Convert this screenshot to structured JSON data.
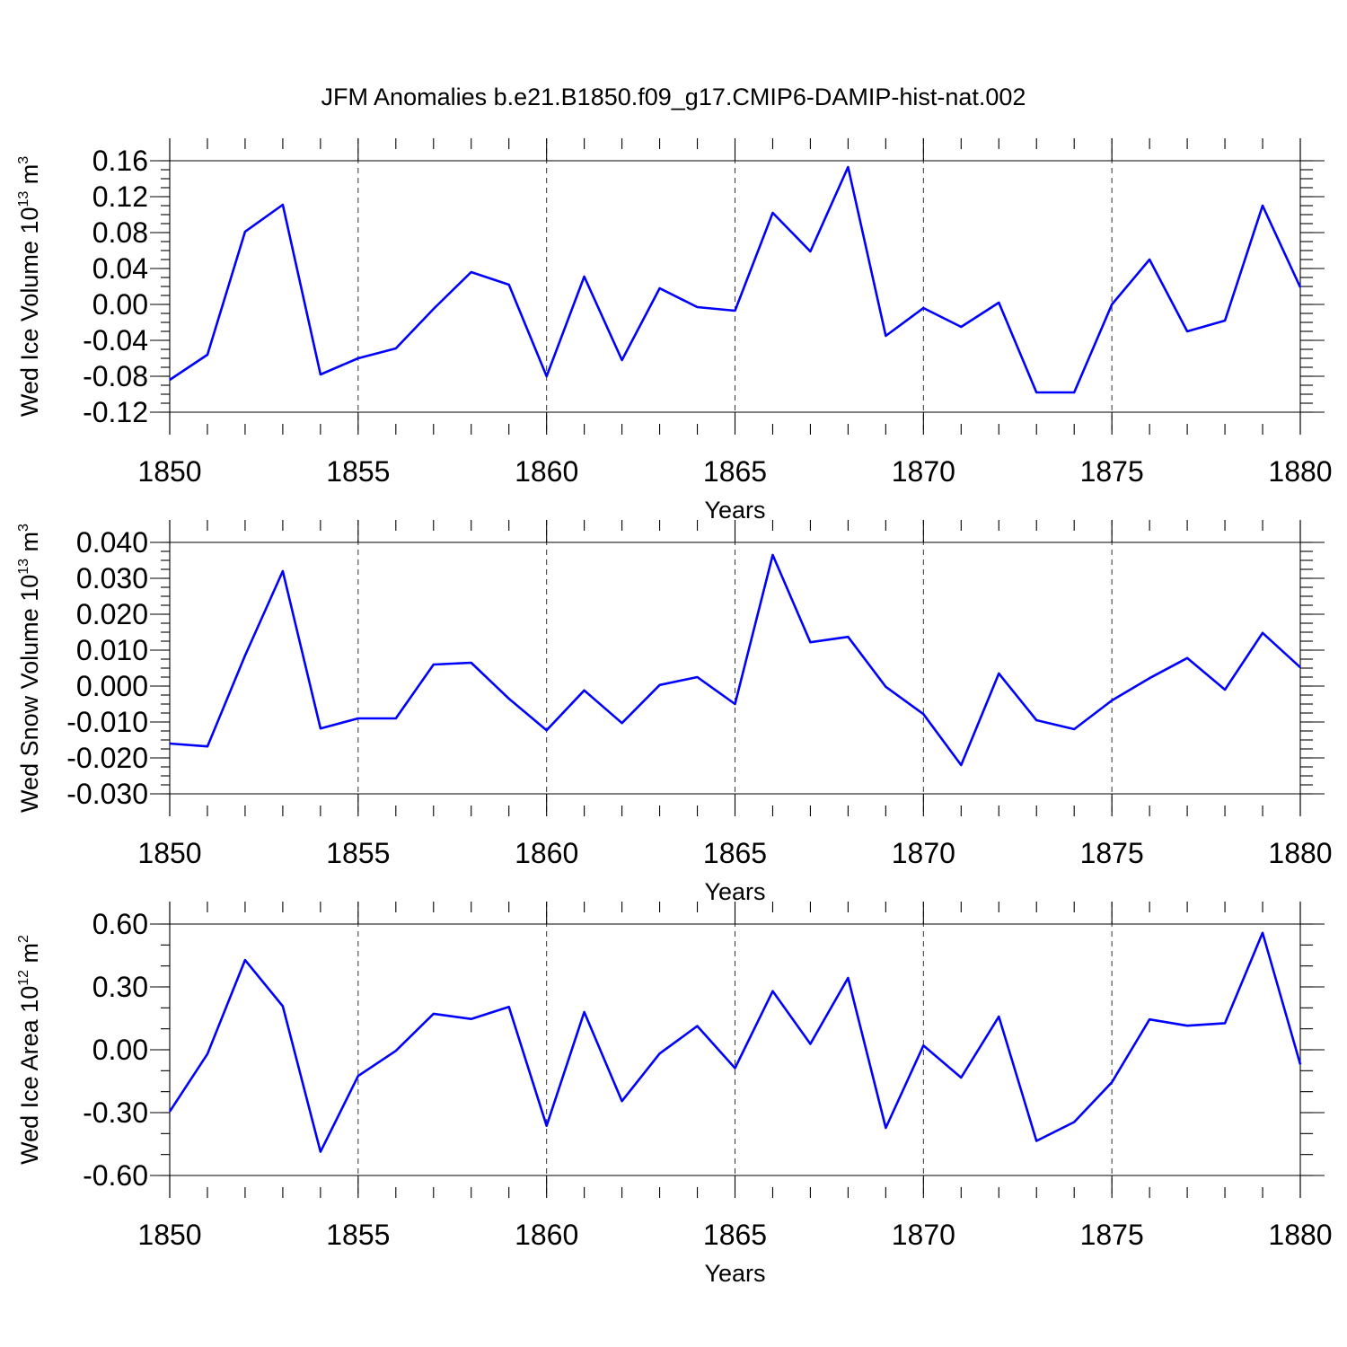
{
  "title": "JFM Anomalies b.e21.B1850.f09_g17.CMIP6-DAMIP-hist-nat.002",
  "colors": {
    "line": "#0000ff",
    "axis": "#000000",
    "grid": "#333333"
  },
  "chart_data": [
    {
      "type": "line",
      "xlabel": "Years",
      "ylabel": {
        "text": "Wed Ice Volume 10",
        "exp": "13",
        "unit": " m",
        "unit_exp": "3"
      },
      "xlim": [
        1850,
        1880
      ],
      "ylim": [
        -0.12,
        0.16
      ],
      "xticks": [
        "1850",
        "1855",
        "1860",
        "1865",
        "1870",
        "1875",
        "1880"
      ],
      "yticks": [
        "0.16",
        "0.12",
        "0.08",
        "0.04",
        "0.00",
        "-0.04",
        "-0.08",
        "-0.12"
      ],
      "grid": "vertical dashed at labeled years",
      "x": [
        1850,
        1851,
        1852,
        1853,
        1854,
        1855,
        1856,
        1857,
        1858,
        1859,
        1860,
        1861,
        1862,
        1863,
        1864,
        1865,
        1866,
        1867,
        1868,
        1869,
        1870,
        1871,
        1872,
        1873,
        1874,
        1875,
        1876,
        1877,
        1878,
        1879,
        1880
      ],
      "series": [
        {
          "values": [
            -0.084,
            -0.056,
            0.081,
            0.111,
            -0.078,
            -0.06,
            -0.049,
            -0.005,
            0.036,
            0.022,
            -0.08,
            0.031,
            -0.062,
            0.018,
            -0.003,
            -0.007,
            0.102,
            0.059,
            0.153,
            -0.035,
            -0.004,
            -0.025,
            0.002,
            -0.098,
            -0.098,
            0.0,
            0.05,
            -0.03,
            -0.018,
            0.11,
            0.019
          ]
        }
      ]
    },
    {
      "type": "line",
      "xlabel": "Years",
      "ylabel": {
        "text": "Wed Snow Volume 10",
        "exp": "13",
        "unit": " m",
        "unit_exp": "3"
      },
      "xlim": [
        1850,
        1880
      ],
      "ylim": [
        -0.03,
        0.04
      ],
      "xticks": [
        "1850",
        "1855",
        "1860",
        "1865",
        "1870",
        "1875",
        "1880"
      ],
      "yticks": [
        "0.040",
        "0.030",
        "0.020",
        "0.010",
        "0.000",
        "-0.010",
        "-0.020",
        "-0.030"
      ],
      "grid": "vertical dashed at labeled years",
      "x": [
        1850,
        1851,
        1852,
        1853,
        1854,
        1855,
        1856,
        1857,
        1858,
        1859,
        1860,
        1861,
        1862,
        1863,
        1864,
        1865,
        1866,
        1867,
        1868,
        1869,
        1870,
        1871,
        1872,
        1873,
        1874,
        1875,
        1876,
        1877,
        1878,
        1879,
        1880
      ],
      "series": [
        {
          "values": [
            -0.016,
            -0.0168,
            0.0085,
            0.032,
            -0.0118,
            -0.009,
            -0.009,
            0.006,
            0.0065,
            -0.0035,
            -0.0123,
            -0.0012,
            -0.0103,
            0.0003,
            0.0025,
            -0.005,
            0.0365,
            0.0122,
            0.0137,
            -0.0002,
            -0.0078,
            -0.022,
            0.0035,
            -0.0095,
            -0.012,
            -0.004,
            0.0022,
            0.0078,
            -0.001,
            0.0148,
            0.0052
          ]
        }
      ]
    },
    {
      "type": "line",
      "xlabel": "Years",
      "ylabel": {
        "text": "Wed Ice Area 10",
        "exp": "12",
        "unit": " m",
        "unit_exp": "2"
      },
      "xlim": [
        1850,
        1880
      ],
      "ylim": [
        -0.6,
        0.6
      ],
      "xticks": [
        "1850",
        "1855",
        "1860",
        "1865",
        "1870",
        "1875",
        "1880"
      ],
      "yticks": [
        "0.60",
        "0.30",
        "0.00",
        "-0.30",
        "-0.60"
      ],
      "grid": "vertical dashed at labeled years",
      "x": [
        1850,
        1851,
        1852,
        1853,
        1854,
        1855,
        1856,
        1857,
        1858,
        1859,
        1860,
        1861,
        1862,
        1863,
        1864,
        1865,
        1866,
        1867,
        1868,
        1869,
        1870,
        1871,
        1872,
        1873,
        1874,
        1875,
        1876,
        1877,
        1878,
        1879,
        1880
      ],
      "series": [
        {
          "values": [
            -0.295,
            -0.02,
            0.428,
            0.208,
            -0.487,
            -0.125,
            -0.005,
            0.172,
            0.147,
            0.205,
            -0.363,
            0.18,
            -0.245,
            -0.018,
            0.113,
            -0.088,
            0.28,
            0.028,
            0.343,
            -0.373,
            0.02,
            -0.133,
            0.158,
            -0.435,
            -0.345,
            -0.155,
            0.145,
            0.115,
            0.127,
            0.558,
            -0.07
          ]
        }
      ]
    }
  ]
}
